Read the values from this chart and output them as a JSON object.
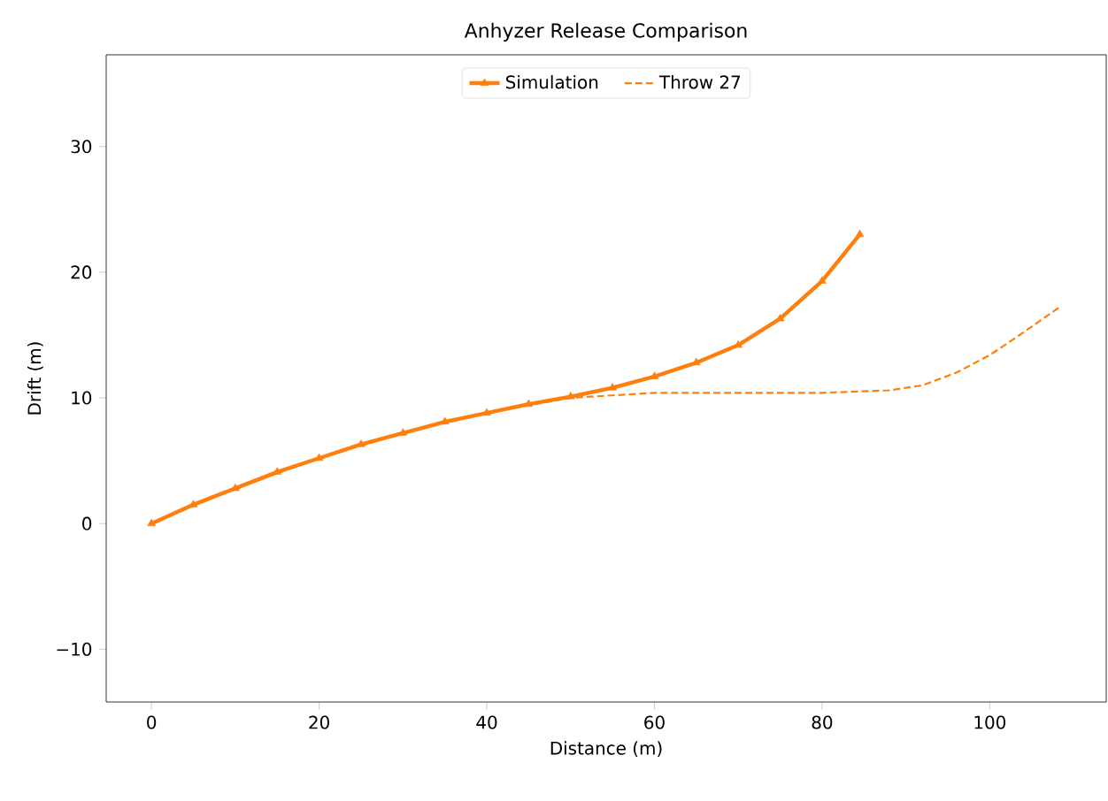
{
  "chart_data": {
    "type": "line",
    "title": "Anhyzer Release Comparison",
    "xlabel": "Distance (m)",
    "ylabel": "Drift (m)",
    "xlim": [
      -5.4,
      113.9
    ],
    "ylim": [
      -14.2,
      37.3
    ],
    "xticks": [
      0,
      20,
      40,
      60,
      80,
      100
    ],
    "yticks": [
      {
        "value": -10,
        "label": "−10"
      },
      0,
      10,
      20,
      30
    ],
    "legend": "top",
    "grid": false,
    "series": [
      {
        "name": "Simulation",
        "color": "#ff7f0e",
        "line_style": "solid",
        "marker": "triangle",
        "x": [
          0,
          5,
          10,
          15,
          20,
          25,
          30,
          35,
          40,
          45,
          50,
          55,
          60,
          65,
          70,
          75,
          80,
          84.5
        ],
        "values": [
          0,
          1.5,
          2.8,
          4.1,
          5.2,
          6.3,
          7.2,
          8.1,
          8.8,
          9.5,
          10.1,
          10.8,
          11.7,
          12.8,
          14.2,
          16.3,
          19.3,
          23
        ]
      },
      {
        "name": "Throw 27",
        "color": "#ff7f0e",
        "line_style": "dashed",
        "marker": "none",
        "x": [
          0,
          10,
          20,
          30,
          40,
          50,
          55,
          60,
          70,
          80,
          88,
          92,
          96,
          100,
          104,
          108.5
        ],
        "values": [
          0,
          2.8,
          5.2,
          7.2,
          8.8,
          10.0,
          10.2,
          10.4,
          10.4,
          10.4,
          10.6,
          11.0,
          12.0,
          13.4,
          15.2,
          17.3
        ]
      }
    ]
  }
}
